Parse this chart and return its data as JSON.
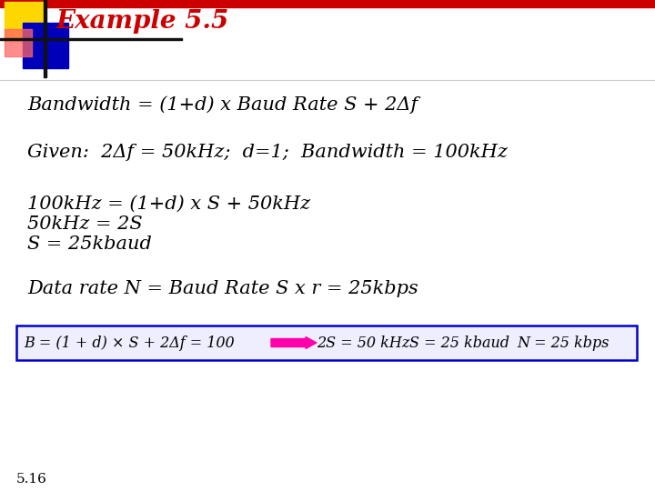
{
  "title": "Example 5.5",
  "title_color": "#CC0000",
  "bg_color": "#FFFFFF",
  "line1": "Bandwidth = (1+d) x Baud Rate S + 2Δf",
  "line2": "Given:  2Δf = 50kHz;  d=1;  Bandwidth = 100kHz",
  "line3a": "100kHz = (1+d) x S + 50kHz",
  "line3b": "50kHz = 2S",
  "line3c": "S = 25kbaud",
  "line4": "Data rate N = Baud Rate S x r = 25kbps",
  "box_formula": "B = (1 + d) × S + 2Δf = 100",
  "box_result1": "2S = 50 kHz",
  "box_result2": "S = 25 kbaud",
  "box_result3": "N = 25 kbps",
  "page_num": "5.16",
  "header_bar_color": "#CC0000",
  "header_gold_color": "#FFD700",
  "header_blue_color": "#0000BB",
  "header_red_color": "#FF6666",
  "box_border_color": "#0000CC",
  "box_bg_color": "#EEEEFF",
  "arrow_color": "#FF00AA",
  "font_size_title": 20,
  "font_size_body": 15,
  "font_size_box": 11.5,
  "font_size_page": 11
}
